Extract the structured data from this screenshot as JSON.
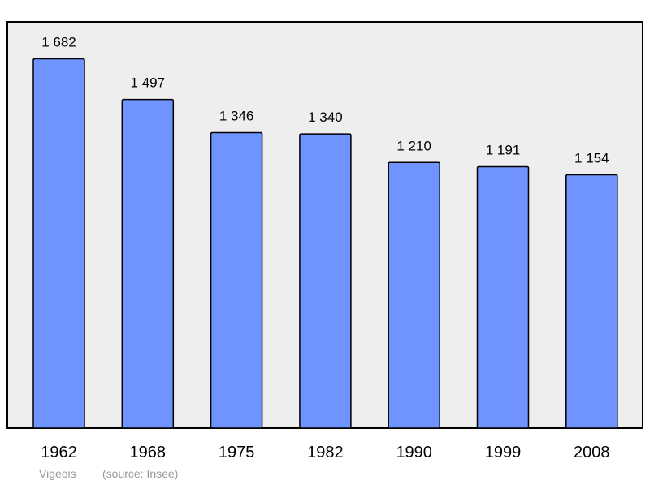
{
  "chart_data": {
    "type": "bar",
    "categories": [
      "1962",
      "1968",
      "1975",
      "1982",
      "1990",
      "1999",
      "2008"
    ],
    "values": [
      1682,
      1497,
      1346,
      1340,
      1210,
      1191,
      1154
    ],
    "value_labels": [
      "1 682",
      "1 497",
      "1 346",
      "1 340",
      "1 210",
      "1 191",
      "1 154"
    ],
    "title": "",
    "xlabel": "",
    "ylabel": "",
    "ylim": [
      0,
      1850
    ],
    "grid": false,
    "legend": "none"
  },
  "footer": {
    "place": "Vigeois",
    "source": "(source: Insee)"
  },
  "colors": {
    "bar_fill": "#7094ff",
    "bar_stroke": "#000000",
    "plot_background": "#eeeeee",
    "footer_text": "#999999"
  }
}
